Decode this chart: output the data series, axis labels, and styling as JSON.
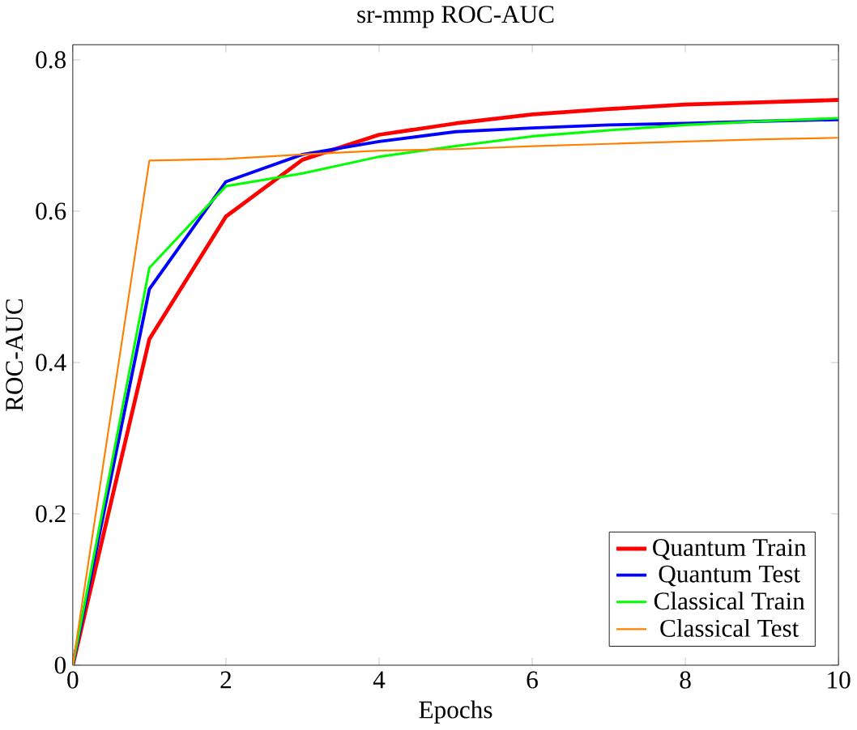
{
  "chart_data": {
    "type": "line",
    "title": "sr-mmp ROC-AUC",
    "xlabel": "Epochs",
    "ylabel": "ROC-AUC",
    "x": [
      0,
      1,
      2,
      3,
      4,
      5,
      6,
      7,
      8,
      9,
      10
    ],
    "xlim": [
      0,
      10
    ],
    "ylim": [
      0,
      0.82
    ],
    "xticks": [
      0,
      2,
      4,
      6,
      8,
      10
    ],
    "yticks": [
      0,
      {
        "value": 0.2,
        "label": "0.2"
      },
      {
        "value": 0.4,
        "label": "0.4"
      },
      {
        "value": 0.6,
        "label": "0.6"
      },
      {
        "value": 0.8,
        "label": "0.8"
      }
    ],
    "legend": "bottom right",
    "grid": false,
    "marker": "none",
    "line_style": "solid",
    "series": [
      {
        "name": "Quantum Train",
        "color": "#ff0000",
        "values": [
          0,
          0.431,
          0.593,
          0.668,
          0.701,
          0.716,
          0.728,
          0.735,
          0.741,
          0.744,
          0.747
        ]
      },
      {
        "name": "Quantum Test",
        "color": "#0000ff",
        "values": [
          0,
          0.497,
          0.639,
          0.675,
          0.692,
          0.705,
          0.71,
          0.714,
          0.716,
          0.719,
          0.721
        ]
      },
      {
        "name": "Classical Train",
        "color": "#00ff00",
        "values": [
          0,
          0.525,
          0.633,
          0.65,
          0.672,
          0.686,
          0.699,
          0.707,
          0.714,
          0.719,
          0.723
        ]
      },
      {
        "name": "Classical Test",
        "color": "#ff8000",
        "values": [
          0,
          0.667,
          0.669,
          0.675,
          0.68,
          0.682,
          0.686,
          0.689,
          0.692,
          0.695,
          0.697
        ]
      }
    ]
  }
}
